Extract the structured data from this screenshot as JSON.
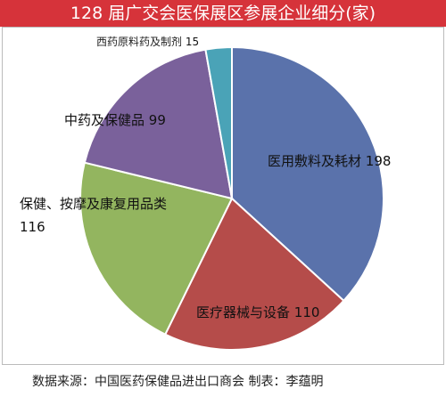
{
  "chart_data": {
    "type": "pie",
    "title": "128 届广交会医保展区参展企业细分(家)",
    "categories": [
      "医用敷料及耗材",
      "医疗器械与设备",
      "保健、按摩及康复用品类",
      "中药及保健品",
      "西药原料药及制剂"
    ],
    "values": [
      198,
      110,
      116,
      99,
      15
    ],
    "colors": [
      "#5a72ab",
      "#b54c4a",
      "#93b55f",
      "#7a619b",
      "#4aa3b7"
    ],
    "source": "数据来源：中国医药保健品进出口商会",
    "author": "制表：李蕴明"
  }
}
